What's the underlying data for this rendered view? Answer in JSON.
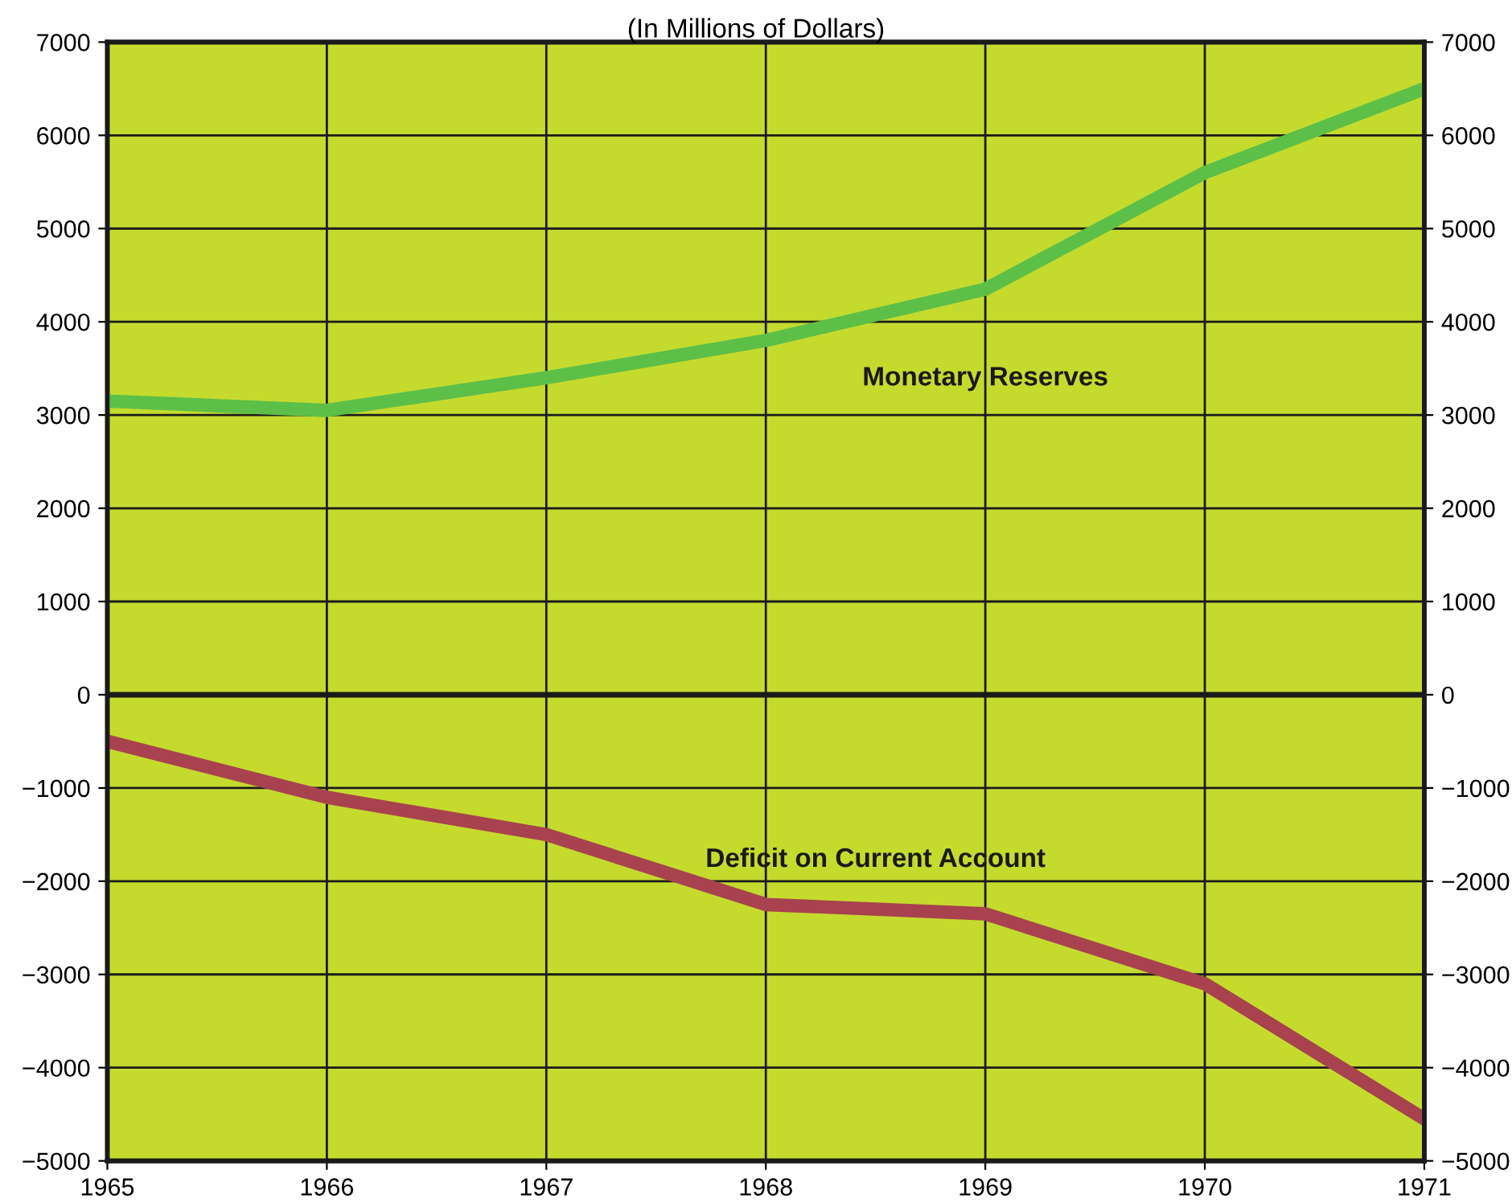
{
  "chart_data": {
    "type": "line",
    "subtitle": "(In Millions of Dollars)",
    "x": [
      1965,
      1966,
      1967,
      1968,
      1969,
      1970,
      1971
    ],
    "series": [
      {
        "name": "Monetary Reserves",
        "color": "#5cbf48",
        "values": [
          3150,
          3050,
          3400,
          3800,
          4350,
          5600,
          6500
        ]
      },
      {
        "name": "Deficit on Current Account",
        "color": "#a8424e",
        "values": [
          -500,
          -1100,
          -1500,
          -2250,
          -2350,
          -3100,
          -4550
        ]
      }
    ],
    "xlim": [
      1965,
      1971
    ],
    "xticks": [
      1965,
      1966,
      1967,
      1968,
      1969,
      1970,
      1971
    ],
    "ylim": [
      -5000,
      7000
    ],
    "yticks": [
      -5000,
      -4000,
      -3000,
      -2000,
      -1000,
      0,
      1000,
      2000,
      3000,
      4000,
      5000,
      6000,
      7000
    ],
    "y2lim": [
      -5000,
      7000
    ],
    "y2ticks": [
      -5000,
      -4000,
      -3000,
      -2000,
      -1000,
      0,
      1000,
      2000,
      3000,
      4000,
      5000,
      6000,
      7000
    ],
    "ref_lines": [
      {
        "axis": "y",
        "value": 0,
        "color": "#1a1a1a"
      }
    ],
    "grid": true,
    "legend": false,
    "marker": "none",
    "line_style": "solid"
  }
}
